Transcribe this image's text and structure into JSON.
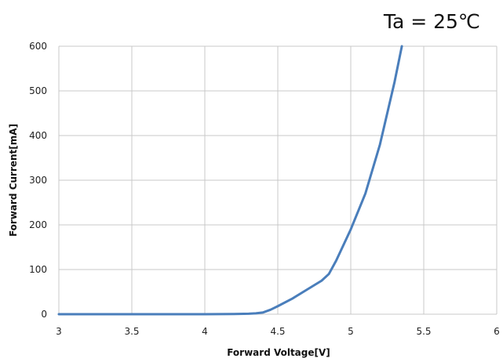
{
  "chart_data": {
    "type": "line",
    "annotation": "Ta = 25℃",
    "xlabel": "Forward Voltage[V]",
    "ylabel": "Forward Current[mA]",
    "xlim": [
      3,
      6
    ],
    "ylim": [
      0,
      600
    ],
    "xticks": [
      3,
      3.5,
      4,
      4.5,
      5,
      5.5,
      6
    ],
    "xtick_labels": [
      "3",
      "3.5",
      "4",
      "4.5",
      "5",
      "5.5",
      "6"
    ],
    "yticks": [
      0,
      100,
      200,
      300,
      400,
      500,
      600
    ],
    "ytick_labels": [
      "0",
      "100",
      "200",
      "300",
      "400",
      "500",
      "600"
    ],
    "grid": true,
    "series_color": "#4a7ebb",
    "series": [
      {
        "x": [
          3.0,
          3.5,
          4.0,
          4.2,
          4.3,
          4.35,
          4.4,
          4.45,
          4.5,
          4.6,
          4.7,
          4.8,
          4.85,
          4.9,
          5.0,
          5.1,
          5.2,
          5.25,
          5.3,
          5.35
        ],
        "y": [
          0,
          0,
          0,
          0.5,
          1,
          2,
          4,
          10,
          18,
          35,
          55,
          75,
          90,
          120,
          190,
          270,
          380,
          450,
          520,
          600
        ]
      }
    ]
  }
}
